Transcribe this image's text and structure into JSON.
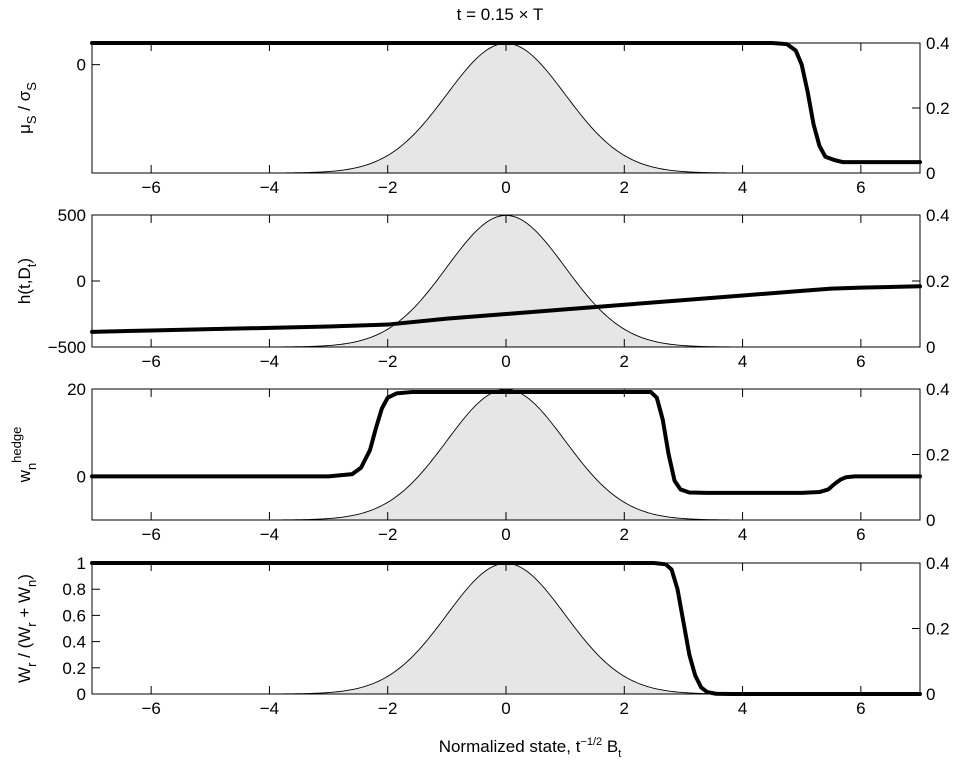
{
  "figure": {
    "title": "t = 0.15 × T",
    "xlabel_main": "Normalized state, t",
    "xlabel_sup": "−1/2",
    "xlabel_mid": " B",
    "xlabel_sub": "t"
  },
  "chart_data": [
    {
      "type": "line",
      "panel": 1,
      "ylabel": {
        "parts": [
          [
            "μ",
            "n"
          ],
          [
            "S",
            "sub"
          ],
          [
            " / σ",
            "n"
          ],
          [
            "S",
            "sub"
          ]
        ]
      },
      "xlim": [
        -7,
        7
      ],
      "ylim_left": [
        -1,
        0.2
      ],
      "ylim_right": [
        0,
        0.4
      ],
      "xticks": [
        -6,
        -4,
        -2,
        0,
        2,
        4,
        6
      ],
      "xtick_labels": [
        "−6",
        "−4",
        "−2",
        "0",
        "2",
        "4",
        "6"
      ],
      "yticks_left": [
        0
      ],
      "ytick_labels_left": [
        "0"
      ],
      "yticks_right": [
        0,
        0.2,
        0.4
      ],
      "ytick_labels_right": [
        "0",
        "0.2",
        "0.4"
      ],
      "density": {
        "name": "standard normal density",
        "axis": "right",
        "fill": "#e6e6e6"
      },
      "series": [
        {
          "axis": "left",
          "x": [
            -7,
            4.5,
            4.75,
            4.9,
            5.0,
            5.1,
            5.2,
            5.3,
            5.4,
            5.55,
            5.7,
            6.0,
            7
          ],
          "y": [
            0.2,
            0.2,
            0.19,
            0.13,
            0.0,
            -0.25,
            -0.55,
            -0.75,
            -0.85,
            -0.88,
            -0.9,
            -0.9,
            -0.9
          ]
        }
      ]
    },
    {
      "type": "line",
      "panel": 2,
      "ylabel": {
        "parts": [
          [
            "h(t,D",
            "n"
          ],
          [
            "t",
            "sub"
          ],
          [
            ")",
            "n"
          ]
        ]
      },
      "xlim": [
        -7,
        7
      ],
      "ylim_left": [
        -500,
        500
      ],
      "ylim_right": [
        0,
        0.4
      ],
      "xticks": [
        -6,
        -4,
        -2,
        0,
        2,
        4,
        6
      ],
      "xtick_labels": [
        "−6",
        "−4",
        "−2",
        "0",
        "2",
        "4",
        "6"
      ],
      "yticks_left": [
        -500,
        0,
        500
      ],
      "ytick_labels_left": [
        "−500",
        "0",
        "500"
      ],
      "yticks_right": [
        0,
        0.2,
        0.4
      ],
      "ytick_labels_right": [
        "0",
        "0.2",
        "0.4"
      ],
      "density": {
        "name": "standard normal density",
        "axis": "right",
        "fill": "#e6e6e6"
      },
      "series": [
        {
          "axis": "left",
          "x": [
            -7,
            -6,
            -5,
            -4,
            -3,
            -2,
            -1,
            0,
            1,
            2,
            3,
            4,
            5,
            5.5,
            6,
            7
          ],
          "y": [
            -385,
            -375,
            -365,
            -355,
            -345,
            -330,
            -285,
            -250,
            -215,
            -180,
            -145,
            -110,
            -75,
            -58,
            -50,
            -40
          ]
        }
      ]
    },
    {
      "type": "line",
      "panel": 3,
      "ylabel": {
        "parts": [
          [
            "w",
            "n"
          ],
          [
            "n",
            "sub"
          ],
          [
            "hedge",
            "sup"
          ]
        ]
      },
      "xlim": [
        -7,
        7
      ],
      "ylim_left": [
        -10,
        20
      ],
      "ylim_right": [
        0,
        0.4
      ],
      "xticks": [
        -6,
        -4,
        -2,
        0,
        2,
        4,
        6
      ],
      "xtick_labels": [
        "−6",
        "−4",
        "−2",
        "0",
        "2",
        "4",
        "6"
      ],
      "yticks_left": [
        0,
        20
      ],
      "ytick_labels_left": [
        "0",
        "20"
      ],
      "yticks_right": [
        0,
        0.2,
        0.4
      ],
      "ytick_labels_right": [
        "0",
        "0.2",
        "0.4"
      ],
      "density": {
        "name": "standard normal density",
        "axis": "right",
        "fill": "#e6e6e6"
      },
      "series": [
        {
          "axis": "left",
          "x": [
            -7,
            -3.0,
            -2.6,
            -2.45,
            -2.3,
            -2.2,
            -2.1,
            -2.0,
            -1.85,
            -1.6,
            2.45,
            2.55,
            2.65,
            2.75,
            2.85,
            2.95,
            3.1,
            3.4,
            5.0,
            5.3,
            5.45,
            5.55,
            5.65,
            5.75,
            5.9,
            6.2,
            7
          ],
          "y": [
            0,
            0,
            0.5,
            2,
            6,
            11,
            15.5,
            18,
            19,
            19.3,
            19.3,
            18,
            13,
            5,
            -1,
            -3,
            -3.7,
            -3.8,
            -3.8,
            -3.6,
            -3,
            -1.8,
            -0.8,
            -0.2,
            0,
            0,
            0
          ]
        }
      ]
    },
    {
      "type": "line",
      "panel": 4,
      "ylabel": {
        "parts": [
          [
            "W",
            "n"
          ],
          [
            "r",
            "sub"
          ],
          [
            " / (W",
            "n"
          ],
          [
            "r",
            "sub"
          ],
          [
            " + W",
            "n"
          ],
          [
            "n",
            "sub"
          ],
          [
            ")",
            "n"
          ]
        ]
      },
      "xlim": [
        -7,
        7
      ],
      "ylim_left": [
        0,
        1
      ],
      "ylim_right": [
        0,
        0.4
      ],
      "xticks": [
        -6,
        -4,
        -2,
        0,
        2,
        4,
        6
      ],
      "xtick_labels": [
        "−6",
        "−4",
        "−2",
        "0",
        "2",
        "4",
        "6"
      ],
      "yticks_left": [
        0,
        0.2,
        0.4,
        0.6,
        0.8,
        1
      ],
      "ytick_labels_left": [
        "0",
        "0.2",
        "0.4",
        "0.6",
        "0.8",
        "1"
      ],
      "yticks_right": [
        0,
        0.2,
        0.4
      ],
      "ytick_labels_right": [
        "0",
        "0.2",
        "0.4"
      ],
      "density": {
        "name": "standard normal density",
        "axis": "right",
        "fill": "#e6e6e6"
      },
      "series": [
        {
          "axis": "left",
          "x": [
            -7,
            2.5,
            2.7,
            2.8,
            2.9,
            3.0,
            3.1,
            3.2,
            3.3,
            3.4,
            3.55,
            3.8,
            7
          ],
          "y": [
            1,
            1,
            0.99,
            0.95,
            0.8,
            0.55,
            0.3,
            0.14,
            0.05,
            0.015,
            0.002,
            0,
            0
          ]
        }
      ]
    }
  ]
}
